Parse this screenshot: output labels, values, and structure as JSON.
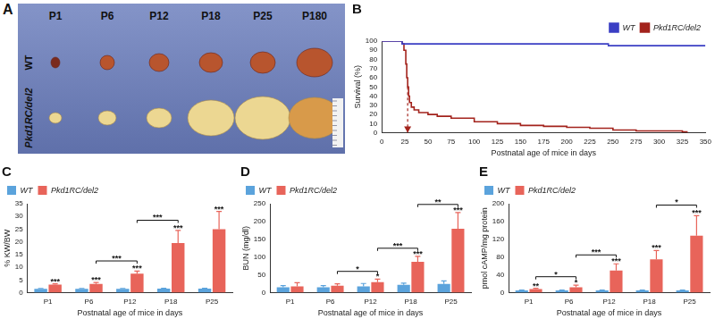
{
  "panel_a": {
    "title": "A",
    "columns": [
      "P1",
      "P6",
      "P12",
      "P18",
      "P25",
      "P180"
    ],
    "rows": [
      "WT",
      "Pkd1RC/del2"
    ]
  },
  "chart_data": [
    {
      "type": "line",
      "title": "B",
      "x_label": "Postnatal age of mice in days",
      "y_label": "Survival (%)",
      "legend": "upper right",
      "grid": false,
      "line_style": "step",
      "xlim": [
        0,
        350
      ],
      "xticks": [
        0,
        25,
        50,
        75,
        100,
        125,
        150,
        175,
        200,
        225,
        250,
        275,
        300,
        325,
        350
      ],
      "ylim": [
        0,
        100
      ],
      "yticks": [
        0,
        10,
        20,
        30,
        40,
        50,
        60,
        70,
        80,
        90,
        100
      ],
      "series": [
        {
          "name": "WT",
          "color": "#3b3fc4",
          "x": [
            0,
            20,
            22,
            240,
            245,
            350
          ],
          "values": [
            100,
            100,
            97,
            97,
            95,
            95
          ]
        },
        {
          "name": "Pkd1RC/del2",
          "color": "#a3231c",
          "x": [
            0,
            20,
            22,
            24,
            26,
            27,
            28,
            29,
            30,
            32,
            35,
            40,
            50,
            60,
            75,
            100,
            125,
            150,
            175,
            200,
            225,
            250,
            275,
            300,
            325,
            330
          ],
          "values": [
            100,
            100,
            97,
            90,
            75,
            60,
            50,
            40,
            33,
            28,
            25,
            22,
            20,
            18,
            16,
            12,
            10,
            8,
            7,
            6,
            5,
            3,
            2,
            2,
            1,
            0
          ]
        }
      ],
      "arrow": {
        "x": 28,
        "y": [
          50,
          0
        ],
        "color": "#a3231c"
      }
    },
    {
      "type": "bar",
      "title": "C",
      "x_label": "Postnatal age of mice in days",
      "y_label": "% KW/BW",
      "legend": "upper left",
      "grid": false,
      "categories": [
        "P1",
        "P6",
        "P12",
        "P18",
        "P25"
      ],
      "ylim": [
        0,
        35
      ],
      "yticks": [
        0,
        5,
        10,
        15,
        20,
        25,
        30,
        35
      ],
      "series": [
        {
          "name": "WT",
          "color": "#5ba3dc",
          "values": [
            1.5,
            1.5,
            1.5,
            1.6,
            1.6
          ],
          "errors": [
            0.2,
            0.2,
            0.2,
            0.2,
            0.2
          ]
        },
        {
          "name": "Pkd1RC/del2",
          "color": "#e8645a",
          "values": [
            3.2,
            3.5,
            7.5,
            19.5,
            25
          ],
          "errors": [
            0.3,
            0.5,
            1,
            5,
            7
          ],
          "stars": [
            "***",
            "***",
            "***",
            "***",
            "***"
          ]
        }
      ],
      "brackets": [
        {
          "from": "P6",
          "to": "P12",
          "y": 12.5,
          "label": "***"
        },
        {
          "from": "P12",
          "to": "P18",
          "y": 28.5,
          "label": "***"
        }
      ]
    },
    {
      "type": "bar",
      "title": "D",
      "x_label": "Postnatal age of mice in days",
      "y_label": "BUN (mg/dl)",
      "legend": "upper left",
      "grid": false,
      "categories": [
        "P1",
        "P6",
        "P12",
        "P18",
        "P25"
      ],
      "ylim": [
        0,
        250
      ],
      "yticks": [
        0,
        50,
        100,
        150,
        200,
        250
      ],
      "series": [
        {
          "name": "WT",
          "color": "#5ba3dc",
          "values": [
            15,
            15,
            18,
            22,
            25
          ],
          "errors": [
            5,
            5,
            8,
            5,
            8
          ]
        },
        {
          "name": "Pkd1RC/del2",
          "color": "#e8645a",
          "values": [
            18,
            20,
            30,
            87,
            180
          ],
          "errors": [
            10,
            5,
            8,
            15,
            45
          ],
          "stars": [
            null,
            null,
            "*",
            "***",
            "***"
          ]
        }
      ],
      "brackets": [
        {
          "from": "P6",
          "to": "P12",
          "y": 60,
          "label": "*"
        },
        {
          "from": "P12",
          "to": "P18",
          "y": 125,
          "label": "***"
        },
        {
          "from": "P18",
          "to": "P25",
          "y": 248,
          "label": "**"
        }
      ]
    },
    {
      "type": "bar",
      "title": "E",
      "x_label": "Postnatal age of mice in days",
      "y_label": "pmol cAMP/mg protein",
      "legend": "upper left",
      "grid": false,
      "categories": [
        "P1",
        "P6",
        "P12",
        "P18",
        "P25"
      ],
      "ylim": [
        0,
        200
      ],
      "yticks": [
        0,
        40,
        80,
        120,
        160,
        200
      ],
      "series": [
        {
          "name": "WT",
          "color": "#5ba3dc",
          "values": [
            5,
            5,
            5,
            5,
            5
          ],
          "errors": [
            1,
            1,
            1,
            1,
            1
          ]
        },
        {
          "name": "Pkd1RC/del2",
          "color": "#e8645a",
          "values": [
            8,
            12,
            50,
            75,
            128
          ],
          "errors": [
            2,
            5,
            15,
            20,
            45
          ],
          "stars": [
            "**",
            "*",
            "***",
            "***",
            "***"
          ]
        }
      ],
      "brackets": [
        {
          "from": "P1",
          "to": "P6",
          "y": 36,
          "label": "*"
        },
        {
          "from": "P6",
          "to": "P12",
          "y": 85,
          "label": "***"
        },
        {
          "from": "P18",
          "to": "P25",
          "y": 197,
          "label": "*"
        }
      ]
    }
  ]
}
